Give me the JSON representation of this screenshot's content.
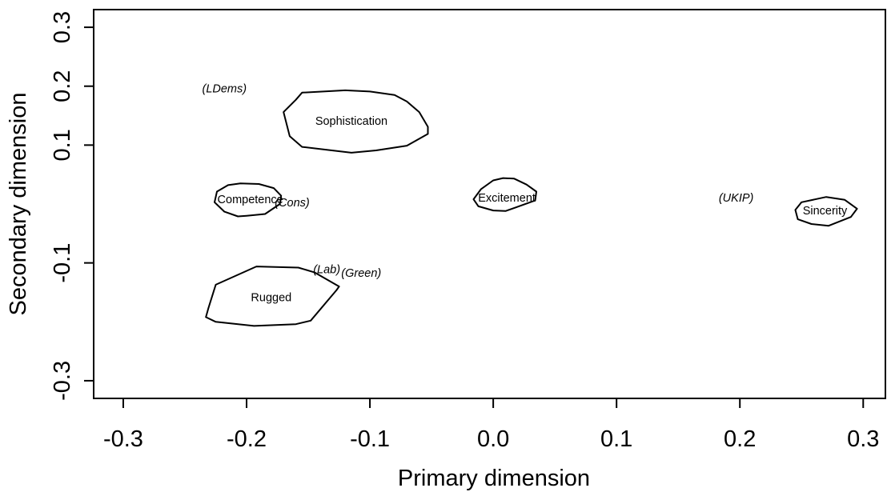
{
  "chart_data": {
    "type": "scatter",
    "xlabel": "Primary dimension",
    "ylabel": "Secondary dimension",
    "xlim": [
      -0.324,
      0.318
    ],
    "ylim": [
      -0.33,
      0.33
    ],
    "x_ticks": [
      -0.3,
      -0.2,
      -0.1,
      0.0,
      0.1,
      0.2,
      0.3
    ],
    "x_tick_labels": [
      "-0.3",
      "-0.2",
      "-0.1",
      "0.0",
      "0.1",
      "0.2",
      "0.3"
    ],
    "y_ticks": [
      -0.3,
      -0.1,
      0.1,
      0.2,
      0.3
    ],
    "y_tick_labels": [
      "-0.3",
      "-0.1",
      "0.1",
      "0.2",
      "0.3"
    ],
    "grid": false,
    "hulls": [
      {
        "label": "Sophistication",
        "center": [
          -0.115,
          0.141
        ],
        "points": [
          [
            -0.155,
            0.189
          ],
          [
            -0.12,
            0.193
          ],
          [
            -0.1,
            0.191
          ],
          [
            -0.08,
            0.185
          ],
          [
            -0.07,
            0.174
          ],
          [
            -0.06,
            0.156
          ],
          [
            -0.053,
            0.131
          ],
          [
            -0.053,
            0.119
          ],
          [
            -0.07,
            0.099
          ],
          [
            -0.095,
            0.091
          ],
          [
            -0.115,
            0.087
          ],
          [
            -0.135,
            0.092
          ],
          [
            -0.155,
            0.097
          ],
          [
            -0.165,
            0.115
          ],
          [
            -0.17,
            0.156
          ],
          [
            -0.16,
            0.177
          ]
        ]
      },
      {
        "label": "Competence",
        "center": [
          -0.197,
          0.008
        ],
        "points": [
          [
            -0.205,
            0.035
          ],
          [
            -0.19,
            0.034
          ],
          [
            -0.178,
            0.027
          ],
          [
            -0.172,
            0.014
          ],
          [
            -0.173,
            0.0
          ],
          [
            -0.185,
            -0.017
          ],
          [
            -0.2,
            -0.02
          ],
          [
            -0.207,
            -0.021
          ],
          [
            -0.218,
            -0.013
          ],
          [
            -0.226,
            0.003
          ],
          [
            -0.224,
            0.021
          ],
          [
            -0.215,
            0.032
          ]
        ]
      },
      {
        "label": "Excitement",
        "center": [
          0.011,
          0.011
        ],
        "points": [
          [
            0.008,
            0.044
          ],
          [
            0.017,
            0.043
          ],
          [
            0.027,
            0.033
          ],
          [
            0.035,
            0.021
          ],
          [
            0.034,
            0.006
          ],
          [
            0.018,
            -0.006
          ],
          [
            0.01,
            -0.012
          ],
          [
            0.0,
            -0.011
          ],
          [
            -0.012,
            -0.004
          ],
          [
            -0.016,
            0.008
          ],
          [
            -0.01,
            0.025
          ],
          [
            0.0,
            0.04
          ]
        ]
      },
      {
        "label": "Sincerity",
        "center": [
          0.269,
          -0.011
        ],
        "points": [
          [
            0.27,
            0.012
          ],
          [
            0.285,
            0.007
          ],
          [
            0.295,
            -0.008
          ],
          [
            0.29,
            -0.022
          ],
          [
            0.272,
            -0.037
          ],
          [
            0.258,
            -0.034
          ],
          [
            0.247,
            -0.026
          ],
          [
            0.245,
            -0.01
          ],
          [
            0.25,
            0.003
          ]
        ]
      },
      {
        "label": "Rugged",
        "center": [
          -0.18,
          -0.158
        ],
        "points": [
          [
            -0.192,
            -0.106
          ],
          [
            -0.158,
            -0.108
          ],
          [
            -0.145,
            -0.116
          ],
          [
            -0.125,
            -0.14
          ],
          [
            -0.127,
            -0.146
          ],
          [
            -0.148,
            -0.198
          ],
          [
            -0.16,
            -0.204
          ],
          [
            -0.194,
            -0.207
          ],
          [
            -0.225,
            -0.2
          ],
          [
            -0.233,
            -0.192
          ],
          [
            -0.231,
            -0.177
          ],
          [
            -0.225,
            -0.137
          ]
        ]
      }
    ],
    "points": [
      {
        "label": "(LDems)",
        "x": -0.218,
        "y": 0.196
      },
      {
        "label": "(Cons)",
        "x": -0.163,
        "y": 0.003
      },
      {
        "label": "(UKIP)",
        "x": 0.197,
        "y": 0.011
      },
      {
        "label": "(Lab)",
        "x": -0.135,
        "y": -0.111
      },
      {
        "label": "(Green)",
        "x": -0.107,
        "y": -0.117
      }
    ]
  }
}
